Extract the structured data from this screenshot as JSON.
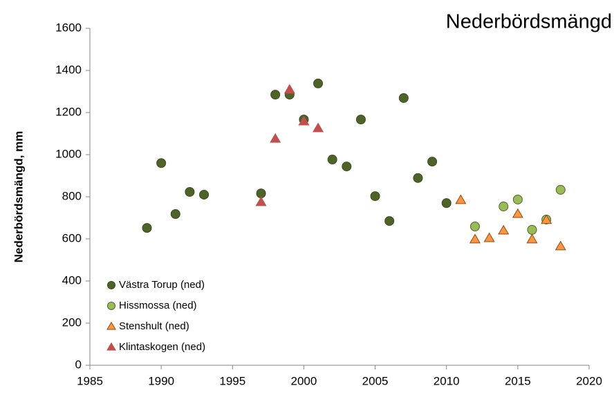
{
  "chart_data": {
    "type": "scatter",
    "title": "Nederbördsmängd",
    "ylabel": "Nederbördsmängd, mm",
    "xlim": [
      1985,
      2020
    ],
    "xticks": [
      1985,
      1990,
      1995,
      2000,
      2005,
      2010,
      2015,
      2020
    ],
    "ylim": [
      0,
      1600
    ],
    "yticks": [
      0,
      200,
      400,
      600,
      800,
      1000,
      1200,
      1400,
      1600
    ],
    "grid": false,
    "legend": "lower left",
    "series": [
      {
        "name": "Västra Torup (ned)",
        "color": "#4f6228",
        "edgecolor": "#3b4a1e",
        "marker": "circle",
        "x": [
          1989,
          1990,
          1991,
          1992,
          1993,
          1997,
          1998,
          1999,
          2000,
          2001,
          2002,
          2003,
          2004,
          2005,
          2006,
          2007,
          2008,
          2009,
          2010
        ],
        "values": [
          652,
          960,
          718,
          823,
          810,
          816,
          1285,
          1285,
          1167,
          1338,
          977,
          944,
          1167,
          803,
          685,
          1269,
          889,
          967,
          770
        ]
      },
      {
        "name": "Hissmossa (ned)",
        "color": "#9bbb59",
        "edgecolor": "#4f6228",
        "marker": "circle",
        "x": [
          2012,
          2014,
          2015,
          2016,
          2017,
          2018
        ],
        "values": [
          659,
          754,
          787,
          643,
          692,
          833
        ]
      },
      {
        "name": "Stenshult (ned)",
        "color": "#f79646",
        "edgecolor": "#984807",
        "marker": "triangle",
        "x": [
          2011,
          2012,
          2013,
          2014,
          2015,
          2016,
          2017,
          2018
        ],
        "values": [
          784,
          597,
          603,
          639,
          718,
          597,
          689,
          564
        ]
      },
      {
        "name": "Klintaskogen (ned)",
        "color": "#c0504d",
        "edgecolor": "#c0504d",
        "marker": "triangle",
        "x": [
          1997,
          1998,
          1999,
          2000,
          2001
        ],
        "values": [
          774,
          1075,
          1308,
          1157,
          1125
        ]
      }
    ]
  }
}
